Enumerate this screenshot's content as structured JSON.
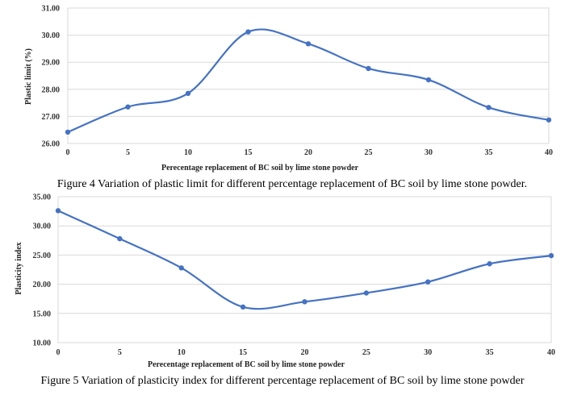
{
  "chart_data": [
    {
      "type": "line",
      "smooth": true,
      "grid": true,
      "line_color": "#4472C4",
      "x": [
        0,
        5,
        10,
        15,
        20,
        25,
        30,
        35,
        40
      ],
      "x_tick_labels": [
        "0",
        "5",
        "10",
        "15",
        "20",
        "25",
        "30",
        "35",
        "40"
      ],
      "y_tick_labels": [
        "26.00",
        "27.00",
        "28.00",
        "29.00",
        "30.00",
        "31.00"
      ],
      "ylim": [
        26,
        31
      ],
      "series": [
        {
          "values": [
            26.42,
            27.35,
            27.85,
            30.12,
            29.68,
            28.77,
            28.35,
            27.33,
            26.87
          ]
        }
      ],
      "xlabel": "Perecentage replacement  of BC soil by lime stone powder",
      "ylabel": "Plastic limit (%)",
      "caption": "Figure 4 Variation of plastic limit for different percentage replacement of BC soil by lime stone powder."
    },
    {
      "type": "line",
      "smooth": true,
      "grid": true,
      "line_color": "#4472C4",
      "x": [
        0,
        5,
        10,
        15,
        20,
        25,
        30,
        35,
        40
      ],
      "x_tick_labels": [
        "0",
        "5",
        "10",
        "15",
        "20",
        "25",
        "30",
        "35",
        "40"
      ],
      "y_tick_labels": [
        "10.00",
        "15.00",
        "20.00",
        "25.00",
        "30.00",
        "35.00"
      ],
      "ylim": [
        10,
        35
      ],
      "series": [
        {
          "values": [
            32.6,
            27.8,
            22.8,
            16.1,
            17.0,
            18.5,
            20.4,
            23.5,
            24.9
          ]
        }
      ],
      "xlabel": "Perecentage  replacement  of BC soil by  lime stone powder",
      "ylabel": "Plasticity index",
      "caption": "Figure 5 Variation of plasticity index for different percentage replacement of BC soil by lime stone powder"
    }
  ]
}
